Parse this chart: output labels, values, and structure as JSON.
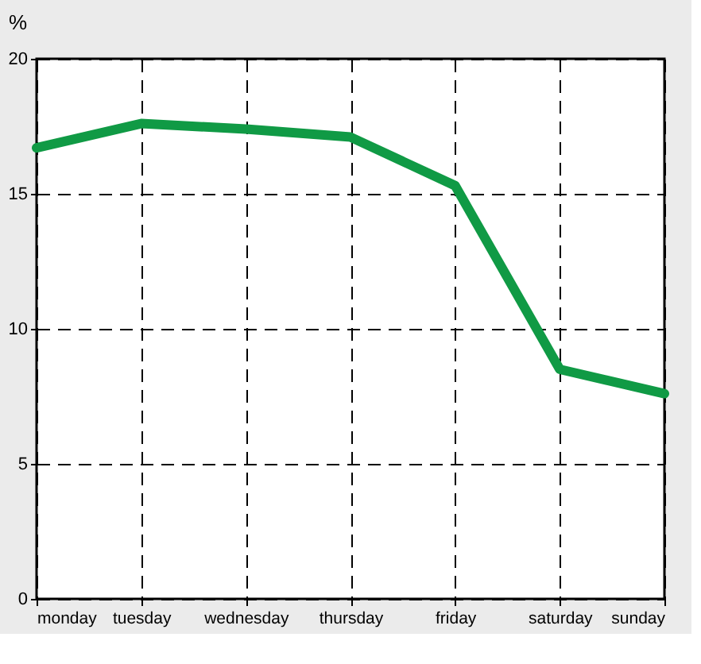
{
  "chart_data": {
    "type": "line",
    "ylabel": "%",
    "categories": [
      "monday",
      "tuesday",
      "wednesday",
      "thursday",
      "friday",
      "saturday",
      "sunday"
    ],
    "series": [
      {
        "color": "#109a45",
        "values": [
          16.7,
          17.6,
          17.4,
          17.1,
          15.3,
          8.5,
          7.6
        ]
      }
    ],
    "ylim": [
      0,
      20
    ],
    "yticks": [
      0,
      5,
      10,
      15,
      20
    ],
    "grid": true,
    "marker": "none",
    "line_style": "solid"
  }
}
